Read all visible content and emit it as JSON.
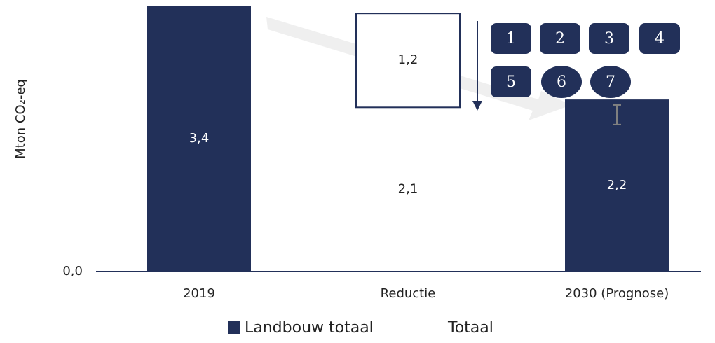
{
  "chart_data": {
    "type": "waterfall",
    "ylabel": "Mton CO₂-eq",
    "categories": [
      "2019",
      "Reductie",
      "2030 (Prognose)"
    ],
    "series": [
      {
        "name": "Landbouw totaal",
        "color": "#223059",
        "values": [
          3.4,
          null,
          2.2
        ],
        "value_labels": [
          "3,4",
          null,
          "2,2"
        ]
      },
      {
        "name": "Totaal",
        "color": "#ffffff",
        "values": [
          null,
          2.1,
          null
        ],
        "value_labels": [
          null,
          "2,1",
          null
        ]
      },
      {
        "color": "#ffffff",
        "edgecolor": "#223059",
        "values": [
          null,
          1.2,
          null
        ],
        "value_labels": [
          null,
          "1,2",
          null
        ]
      }
    ],
    "error_bar": {
      "index": 2,
      "low": 1.88,
      "high": 2.13,
      "color": "#808080"
    },
    "ylim": [
      0,
      3.4
    ],
    "yticks": [
      {
        "value": 0,
        "label": "0,0"
      }
    ],
    "badges": [
      {
        "label": "1",
        "shape": "rect"
      },
      {
        "label": "2",
        "shape": "rect"
      },
      {
        "label": "3",
        "shape": "rect"
      },
      {
        "label": "4",
        "shape": "rect"
      },
      {
        "label": "5",
        "shape": "rect"
      },
      {
        "label": "6",
        "shape": "ellipse"
      },
      {
        "label": "7",
        "shape": "ellipse"
      }
    ],
    "badge_color": "#223059",
    "legend": "bottom"
  }
}
